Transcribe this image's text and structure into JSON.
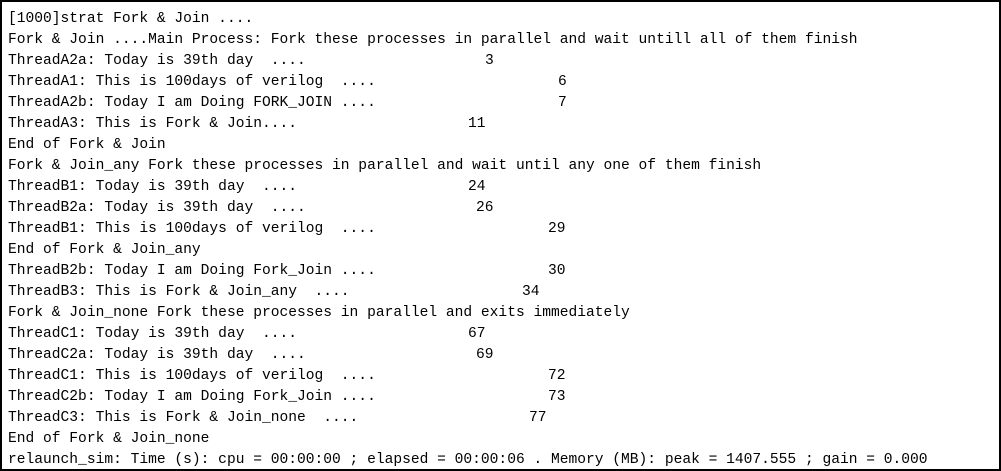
{
  "console": {
    "lines": [
      {
        "text": "[1000]strat Fork & Join ...."
      },
      {
        "text": "Fork & Join ....Main Process: Fork these processes in parallel and wait untill all of them finish"
      },
      {
        "text": "ThreadA2a: Today is 39th day  ....",
        "value": "3"
      },
      {
        "text": "ThreadA1: This is 100days of verilog  ....",
        "value": "6"
      },
      {
        "text": "ThreadA2b: Today I am Doing FORK_JOIN ....",
        "value": "7"
      },
      {
        "text": "ThreadA3: This is Fork & Join....",
        "value": "11"
      },
      {
        "text": "End of Fork & Join"
      },
      {
        "text": "Fork & Join_any Fork these processes in parallel and wait until any one of them finish"
      },
      {
        "text": "ThreadB1: Today is 39th day  ....",
        "value": "24"
      },
      {
        "text": "ThreadB2a: Today is 39th day  ....",
        "value": "26"
      },
      {
        "text": "ThreadB1: This is 100days of verilog  ....",
        "value": "29"
      },
      {
        "text": "End of Fork & Join_any"
      },
      {
        "text": "ThreadB2b: Today I am Doing Fork_Join ....",
        "value": "30"
      },
      {
        "text": "ThreadB3: This is Fork & Join_any  ....",
        "value": "34"
      },
      {
        "text": "Fork & Join_none Fork these processes in parallel and exits immediately"
      },
      {
        "text": "ThreadC1: Today is 39th day  ....",
        "value": "67"
      },
      {
        "text": "ThreadC2a: Today is 39th day  ....",
        "value": "69"
      },
      {
        "text": "ThreadC1: This is 100days of verilog  ....",
        "value": "72"
      },
      {
        "text": "ThreadC2b: Today I am Doing Fork_Join ....",
        "value": "73"
      },
      {
        "text": "ThreadC3: This is Fork & Join_none  ....",
        "value": "77"
      },
      {
        "text": "End of Fork & Join_none"
      },
      {
        "text": "relaunch_sim: Time (s): cpu = 00:00:00 ; elapsed = 00:00:06 . Memory (MB): peak = 1407.555 ; gain = 0.000"
      }
    ]
  }
}
